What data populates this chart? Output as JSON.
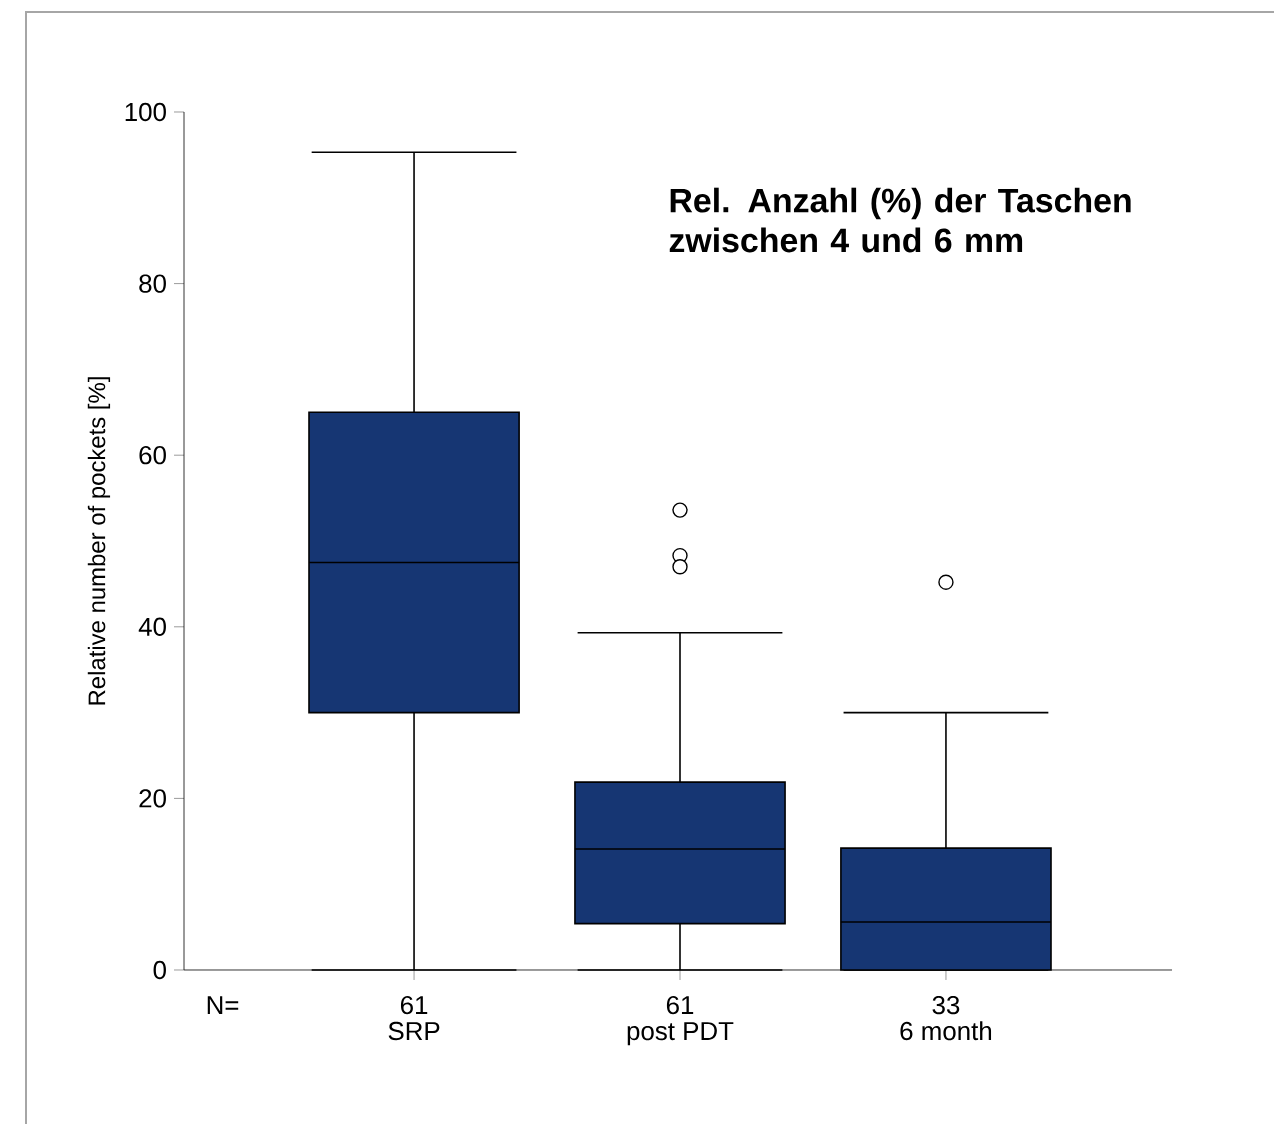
{
  "chart_data": {
    "type": "box",
    "title": "Rel. Anzahl (%) der Taschen zwischen 4 und 6 mm",
    "ylabel": "Relative number of pockets [%]",
    "categories": [
      "SRP",
      "post PDT",
      "6 month"
    ],
    "annotations": [
      "N=",
      "61",
      "61",
      "33"
    ],
    "boxes": [
      {
        "low": 0,
        "q1": 30,
        "median": 47.5,
        "q3": 65,
        "high": 95.3
      },
      {
        "low": 0,
        "q1": 5.4,
        "median": 14.1,
        "q3": 21.9,
        "high": 39.3,
        "outliers": [
          53.6,
          48.3,
          47
        ]
      },
      {
        "low": 0,
        "q1": 0,
        "median": 5.6,
        "q3": 14.2,
        "high": 30,
        "outliers": [
          45.2
        ]
      }
    ],
    "color": "#163673",
    "ylim": [
      0,
      100
    ],
    "yticks": [
      0,
      20,
      40,
      60,
      80,
      100
    ],
    "grid": false
  }
}
